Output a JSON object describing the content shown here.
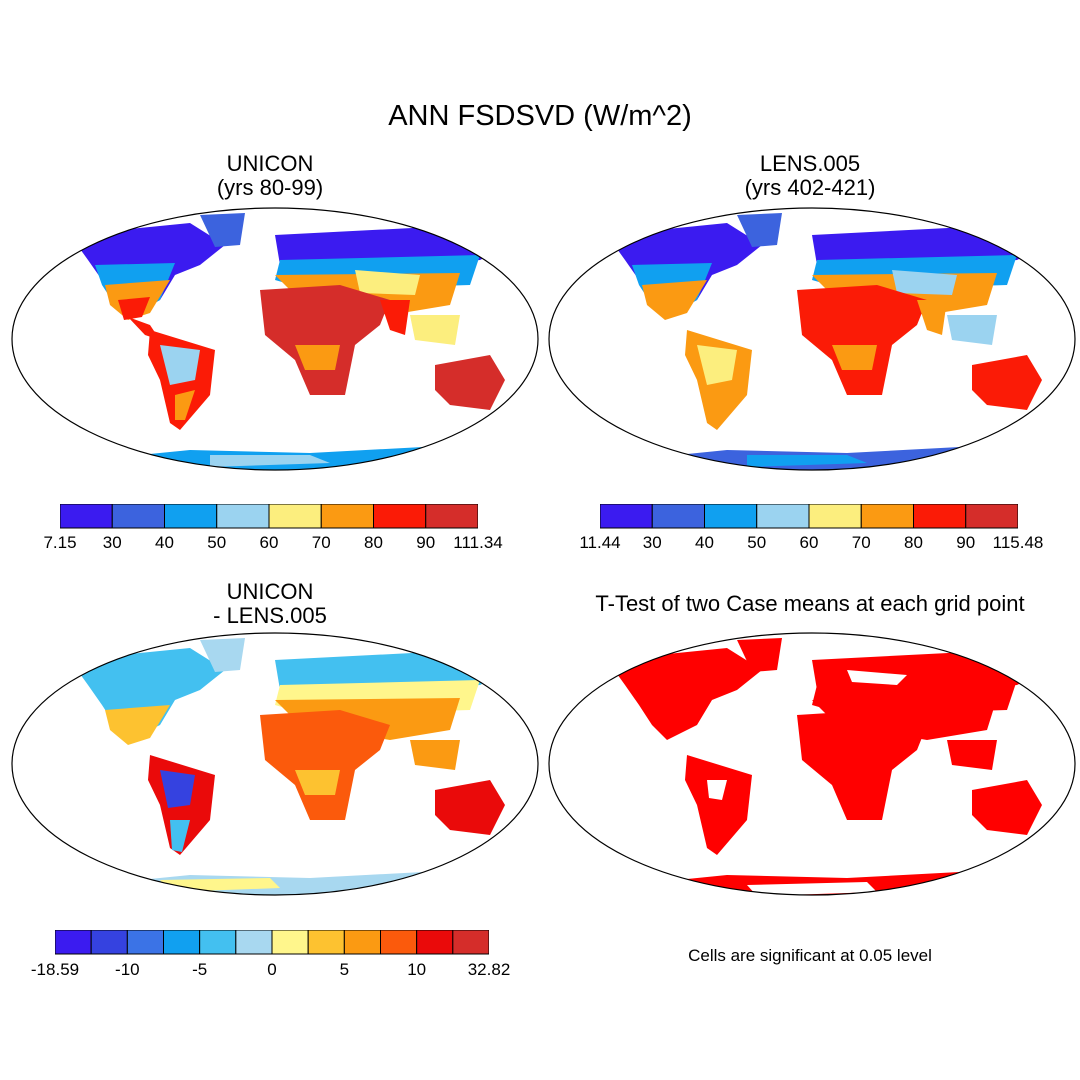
{
  "title": "ANN FSDSVD (W/m^2)",
  "panels": {
    "top_left": {
      "title_line1": "UNICON",
      "title_line2": "(yrs 80-99)"
    },
    "top_right": {
      "title_line1": "LENS.005",
      "title_line2": "(yrs 402-421)"
    },
    "bottom_left": {
      "title_line1": "UNICON",
      "title_line2": "- LENS.005"
    },
    "bottom_right": {
      "title_line1": "T-Test of two Case means at each grid point",
      "note": "Cells are significant at 0.05 level"
    }
  },
  "colorbars": {
    "top_left": {
      "colors": [
        "#3b1bf0",
        "#3c63de",
        "#10a0f0",
        "#9bd3f0",
        "#fcee7e",
        "#fb9a12",
        "#fb1b06",
        "#d52d2a"
      ],
      "labels": [
        "7.15",
        "30",
        "40",
        "50",
        "60",
        "70",
        "80",
        "90",
        "111.34"
      ]
    },
    "top_right": {
      "colors": [
        "#3b1bf0",
        "#3c63de",
        "#10a0f0",
        "#9bd3f0",
        "#fcee7e",
        "#fb9a12",
        "#fb1b06",
        "#d52d2a"
      ],
      "labels": [
        "11.44",
        "30",
        "40",
        "50",
        "60",
        "70",
        "80",
        "90",
        "115.48"
      ]
    },
    "bottom_left": {
      "colors": [
        "#3b1bf0",
        "#3542e0",
        "#3b73e6",
        "#11a0f0",
        "#43c0f0",
        "#a8d8f0",
        "#fff68c",
        "#fdc230",
        "#fb9a12",
        "#fb5a0c",
        "#ea0a0a",
        "#d52d2a"
      ],
      "labels": [
        "-18.59",
        "-10",
        "-5",
        "0",
        "5",
        "10",
        "32.82"
      ],
      "label_edges": [
        0,
        2,
        4,
        6,
        8,
        10,
        12
      ]
    }
  }
}
